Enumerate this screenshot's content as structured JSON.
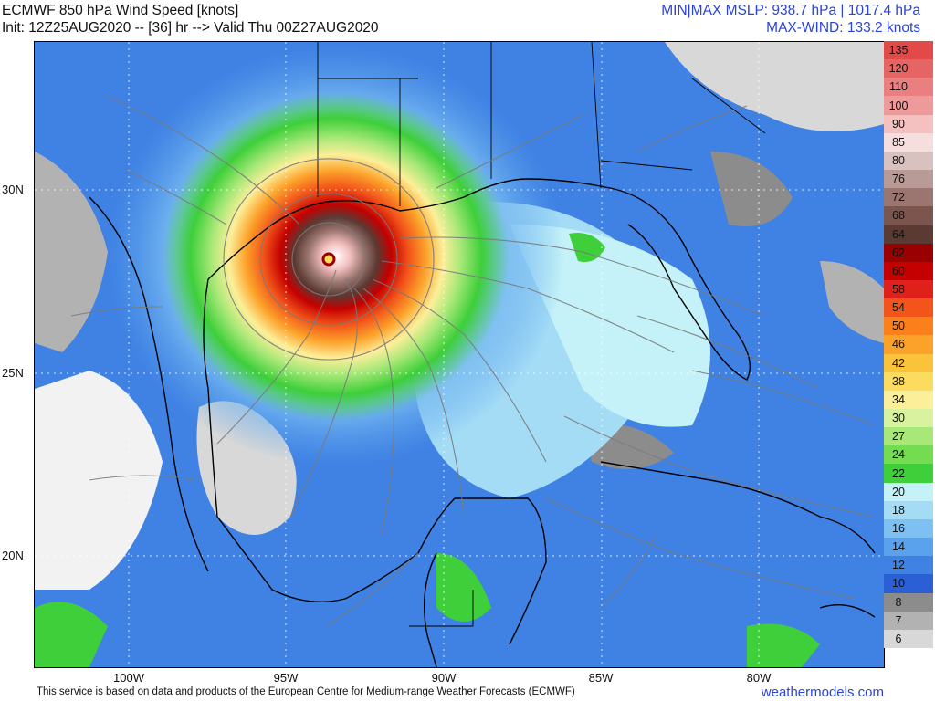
{
  "header": {
    "title": "ECMWF 850 hPa Wind Speed [knots]",
    "init_line": "Init: 12Z25AUG2020 -- [36] hr --> Valid Thu 00Z27AUG2020",
    "mslp_line": "MIN|MAX MSLP: 938.7 hPa | 1017.4 hPa",
    "maxwind_line": "MAX-WIND: 133.2 knots"
  },
  "axes": {
    "latitudes": [
      "30N",
      "25N",
      "20N"
    ],
    "longitudes": [
      "100W",
      "95W",
      "90W",
      "85W",
      "80W"
    ]
  },
  "legend": [
    {
      "label": "135",
      "color": "#e24a4a"
    },
    {
      "label": "120",
      "color": "#e56565"
    },
    {
      "label": "110",
      "color": "#e97f7f"
    },
    {
      "label": "100",
      "color": "#ef9a9a"
    },
    {
      "label": "90",
      "color": "#f4c0c0"
    },
    {
      "label": "85",
      "color": "#f7dede"
    },
    {
      "label": "80",
      "color": "#d8c2c0"
    },
    {
      "label": "76",
      "color": "#b89a96"
    },
    {
      "label": "72",
      "color": "#9b7670"
    },
    {
      "label": "68",
      "color": "#7b564f"
    },
    {
      "label": "64",
      "color": "#5a3a33"
    },
    {
      "label": "62",
      "color": "#9a0000"
    },
    {
      "label": "60",
      "color": "#c40000"
    },
    {
      "label": "58",
      "color": "#e0201a"
    },
    {
      "label": "54",
      "color": "#f2541a"
    },
    {
      "label": "50",
      "color": "#fb7f1a"
    },
    {
      "label": "46",
      "color": "#fca22a"
    },
    {
      "label": "42",
      "color": "#fbc23c"
    },
    {
      "label": "38",
      "color": "#fcdc5e"
    },
    {
      "label": "34",
      "color": "#fcef9a"
    },
    {
      "label": "30",
      "color": "#d8f2a0"
    },
    {
      "label": "27",
      "color": "#a8e878"
    },
    {
      "label": "24",
      "color": "#74dc50"
    },
    {
      "label": "22",
      "color": "#3ecf3a"
    },
    {
      "label": "20",
      "color": "#c4f2f8"
    },
    {
      "label": "18",
      "color": "#a4dcf6"
    },
    {
      "label": "16",
      "color": "#7ec0f2"
    },
    {
      "label": "14",
      "color": "#5ba2ec"
    },
    {
      "label": "12",
      "color": "#3f82e4"
    },
    {
      "label": "10",
      "color": "#2a5fd6"
    },
    {
      "label": "8",
      "color": "#8c8c8c"
    },
    {
      "label": "7",
      "color": "#b2b2b2"
    },
    {
      "label": "6",
      "color": "#d8d8d8"
    }
  ],
  "footer": {
    "credit": "This service is based on data and products of the European Centre for Medium-range Weather Forecasts (ECMWF)",
    "site": "weathermodels.com"
  }
}
